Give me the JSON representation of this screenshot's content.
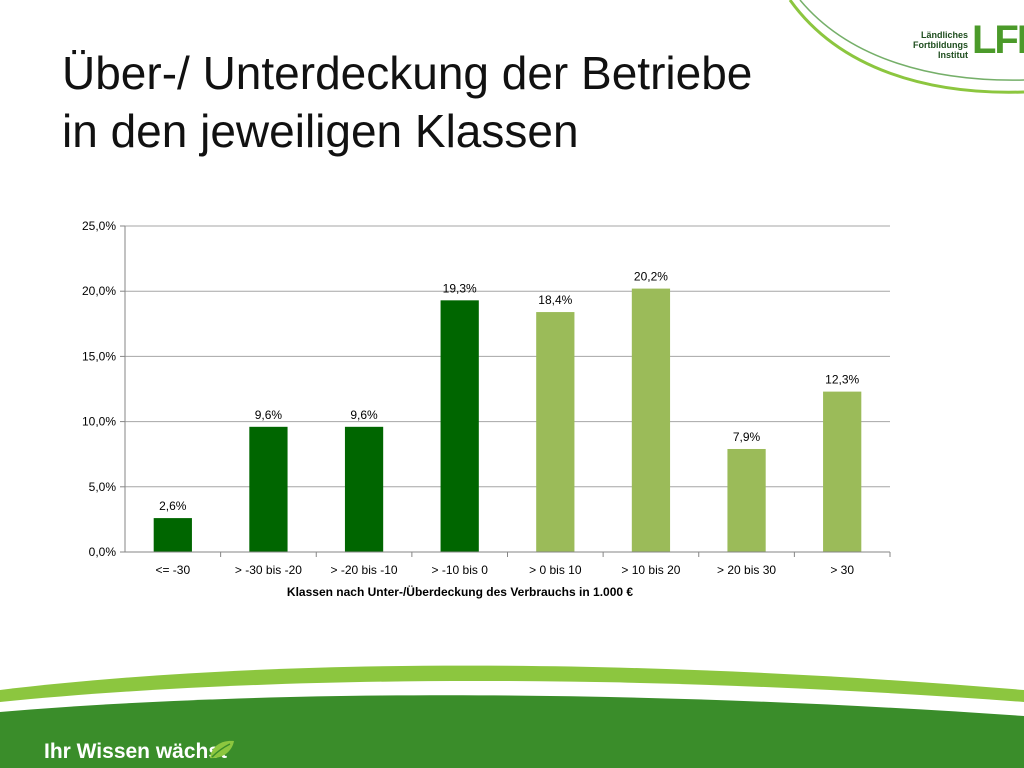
{
  "slide": {
    "title_line1": "Über-/ Unterdeckung der Betriebe",
    "title_line2": "in den jeweiligen Klassen",
    "logo_line1": "Ländliches",
    "logo_line2": "Fortbildungs",
    "logo_line3": "Institut",
    "logo_mark": "LFI",
    "slogan": "Ihr Wissen wächst",
    "colors": {
      "dark_green": "#006600",
      "light_green": "#9bbb59",
      "footer_green": "#3a8d2a",
      "footer_light": "#8cc63f"
    }
  },
  "chart_data": {
    "type": "bar",
    "categories": [
      "<= -30",
      "> -30 bis -20",
      "> -20 bis -10",
      "> -10 bis 0",
      "> 0 bis 10",
      "> 10 bis 20",
      "> 20 bis 30",
      "> 30"
    ],
    "values": [
      2.6,
      9.6,
      9.6,
      19.3,
      18.4,
      20.2,
      7.9,
      12.3
    ],
    "data_labels": [
      "2,6%",
      "9,6%",
      "9,6%",
      "19,3%",
      "18,4%",
      "20,2%",
      "7,9%",
      "12,3%"
    ],
    "bar_colors": [
      "#006600",
      "#006600",
      "#006600",
      "#006600",
      "#9bbb59",
      "#9bbb59",
      "#9bbb59",
      "#9bbb59"
    ],
    "xlabel": "Klassen nach Unter-/Überdeckung des Verbrauchs in 1.000 €",
    "ylabel": "",
    "ylim": [
      0,
      25
    ],
    "yticks": [
      0,
      5,
      10,
      15,
      20,
      25
    ],
    "ytick_labels": [
      "0,0%",
      "5,0%",
      "10,0%",
      "15,0%",
      "20,0%",
      "25,0%"
    ],
    "grid": true,
    "legend": "none"
  }
}
